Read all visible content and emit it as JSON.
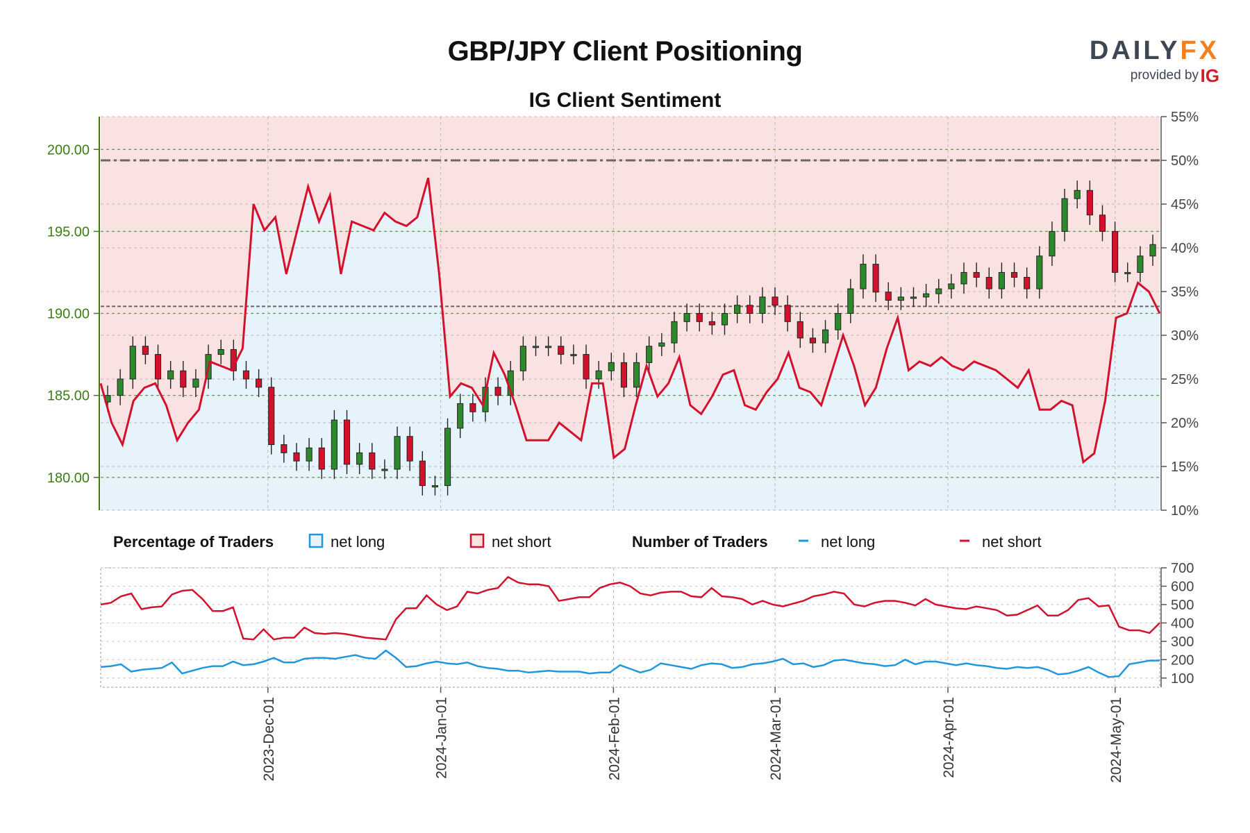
{
  "header": {
    "title": "GBP/JPY Client Positioning",
    "subtitle": "IG Client Sentiment",
    "logo": {
      "text_main": "DAILY",
      "text_accent": "FX",
      "provided_by": "provided by",
      "provider": "IG"
    }
  },
  "legend": {
    "pct_heading": "Percentage of Traders",
    "pct_long": "net long",
    "pct_short": "net short",
    "num_heading": "Number of Traders",
    "num_long": "net long",
    "num_short": "net short"
  },
  "colors": {
    "long_fill": "#e6f3fb",
    "short_fill": "#fbe2e2",
    "long_line": "#1f97dd",
    "short_line": "#d4112c",
    "candle_up": "#2c8a2c",
    "candle_down": "#d4112c",
    "price_axis": "#3b7d12",
    "ref_line": "#6e6666"
  },
  "chart_data": [
    {
      "type": "candlestick+line",
      "title": "GBP/JPY Client Positioning",
      "subtitle": "IG Client Sentiment",
      "x": {
        "type": "date",
        "range": [
          "2023-11-01",
          "2024-05-09"
        ],
        "ticks": [
          "2023-Dec-01",
          "2024-Jan-01",
          "2024-Feb-01",
          "2024-Mar-01",
          "2024-Apr-01",
          "2024-May-01"
        ]
      },
      "price_axis": {
        "side": "left",
        "ylim": [
          178.0,
          202.0
        ],
        "ticks": [
          "180.00",
          "185.00",
          "190.00",
          "195.00",
          "200.00"
        ]
      },
      "pct_axis": {
        "side": "right",
        "ylim": [
          10,
          55
        ],
        "ticks": [
          "10%",
          "15%",
          "20%",
          "25%",
          "30%",
          "35%",
          "40%",
          "45%",
          "50%",
          "55%"
        ]
      },
      "reference_lines_pct": [
        50,
        33.3
      ],
      "net_long_pct_weekly": [
        24.5,
        20,
        17.5,
        22.5,
        24,
        24.5,
        22,
        18,
        20,
        21.5,
        27,
        26.5,
        26,
        28.5,
        45,
        42,
        43.5,
        37,
        42,
        47,
        43,
        46,
        37,
        43,
        42.5,
        42,
        44,
        43,
        42.5,
        43.5,
        48,
        37,
        23,
        24.5,
        24,
        22,
        28,
        25.5,
        22,
        18,
        18,
        18,
        20,
        19,
        18,
        24.5,
        24.5,
        16,
        17,
        22,
        26.5,
        23,
        24.5,
        27.5,
        22,
        21,
        23,
        25.5,
        26,
        22,
        21.5,
        23.5,
        25,
        28,
        24,
        23.5,
        22,
        26,
        30,
        26.5,
        22,
        24,
        28.5,
        32,
        26,
        27,
        26.5,
        27.5,
        26.5,
        26,
        27,
        26.5,
        26,
        25,
        24,
        26,
        21.5,
        21.5,
        22.5,
        22,
        15.5,
        16.5,
        22.5,
        32,
        32.5,
        36,
        35,
        32.5
      ],
      "series": [
        {
          "name": "net long"
        },
        {
          "name": "net short"
        }
      ],
      "candles_weekly_close": [
        185,
        186,
        188,
        187.5,
        186,
        186.5,
        185.5,
        186,
        187.5,
        187.8,
        186.5,
        186,
        185.5,
        182,
        181.5,
        181,
        181.8,
        180.5,
        183.5,
        180.8,
        181.5,
        180.5,
        180.5,
        182.5,
        181,
        179.5,
        179.5,
        183,
        184.5,
        184,
        185.5,
        185,
        186.5,
        188,
        188,
        188,
        187.5,
        187.5,
        186,
        186.5,
        187,
        185.5,
        187,
        188,
        188.2,
        189.5,
        190,
        189.5,
        189.3,
        190,
        190.5,
        190,
        191,
        190.5,
        189.5,
        188.5,
        188.2,
        189,
        190,
        191.5,
        193,
        191.3,
        190.8,
        191,
        191,
        191.2,
        191.5,
        191.8,
        192.5,
        192.2,
        191.5,
        192.5,
        192.2,
        191.5,
        193.5,
        195,
        197,
        197.5,
        196,
        195,
        192.5,
        192.5,
        193.5,
        194.2
      ]
    },
    {
      "type": "line",
      "yaxis": {
        "side": "right",
        "ylim": [
          50,
          700
        ],
        "ticks": [
          "100",
          "200",
          "300",
          "400",
          "500",
          "600",
          "700"
        ]
      },
      "x": {
        "type": "date",
        "range": [
          "2023-11-01",
          "2024-05-09"
        ]
      },
      "series": [
        {
          "name": "net short",
          "values": [
            500,
            510,
            545,
            560,
            475,
            485,
            490,
            555,
            575,
            580,
            530,
            465,
            465,
            485,
            315,
            310,
            365,
            310,
            320,
            320,
            375,
            345,
            340,
            345,
            340,
            330,
            320,
            315,
            310,
            420,
            480,
            480,
            550,
            500,
            470,
            490,
            570,
            560,
            580,
            590,
            650,
            620,
            610,
            610,
            600,
            520,
            530,
            540,
            540,
            590,
            610,
            620,
            600,
            560,
            550,
            565,
            570,
            570,
            545,
            540,
            590,
            545,
            540,
            530,
            500,
            520,
            500,
            490,
            505,
            520,
            545,
            555,
            570,
            560,
            500,
            490,
            510,
            520,
            520,
            510,
            495,
            530,
            500,
            490,
            480,
            475,
            490,
            480,
            470,
            440,
            445,
            470,
            495,
            440,
            440,
            470,
            525,
            535,
            490,
            495,
            380,
            360,
            360,
            345,
            400
          ]
        },
        {
          "name": "net long",
          "values": [
            160,
            165,
            175,
            135,
            145,
            150,
            155,
            185,
            125,
            140,
            155,
            165,
            165,
            190,
            170,
            175,
            190,
            210,
            185,
            185,
            205,
            210,
            210,
            205,
            215,
            225,
            210,
            205,
            250,
            210,
            160,
            165,
            180,
            190,
            180,
            175,
            185,
            165,
            155,
            150,
            140,
            140,
            130,
            135,
            140,
            135,
            135,
            135,
            125,
            130,
            130,
            170,
            150,
            130,
            145,
            180,
            170,
            160,
            150,
            170,
            180,
            175,
            155,
            160,
            175,
            180,
            190,
            205,
            175,
            180,
            160,
            170,
            195,
            200,
            190,
            180,
            175,
            165,
            170,
            200,
            175,
            190,
            190,
            180,
            170,
            180,
            170,
            165,
            155,
            150,
            160,
            155,
            160,
            145,
            120,
            125,
            140,
            160,
            130,
            105,
            110,
            175,
            185,
            195,
            195
          ]
        }
      ]
    }
  ]
}
